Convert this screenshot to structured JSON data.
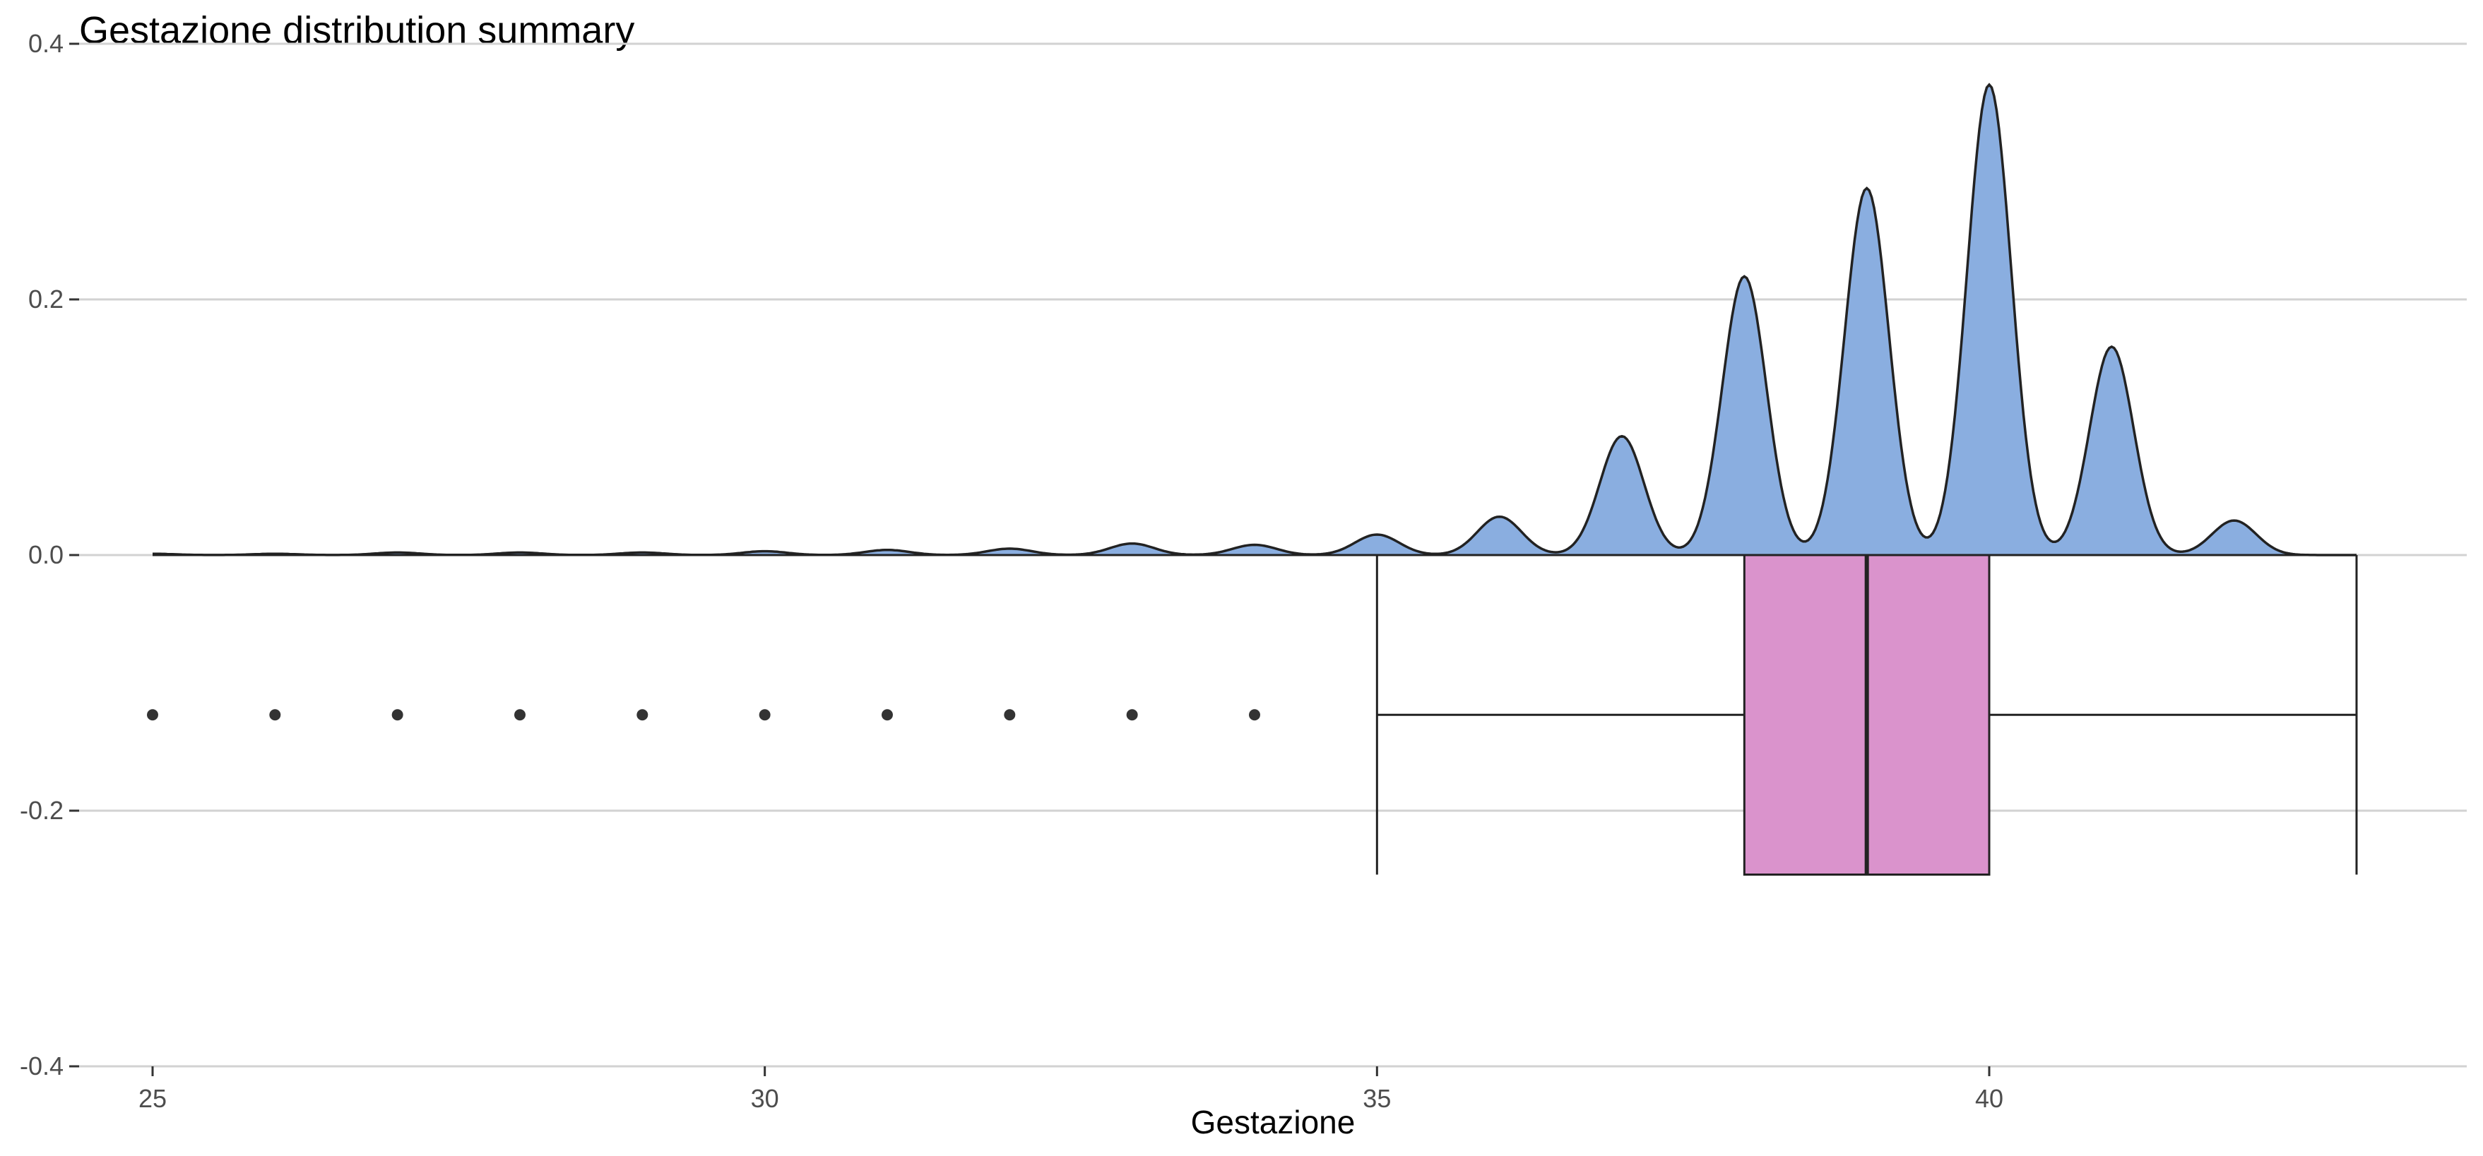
{
  "chart_data": {
    "type": "density-boxplot",
    "title": "Gestazione distribution summary",
    "xlabel": "Gestazione",
    "ylabel": "",
    "xlim": [
      24.4,
      43.9
    ],
    "ylim": [
      -0.4,
      0.4
    ],
    "x_ticks": [
      25,
      30,
      35,
      40
    ],
    "y_ticks": [
      -0.4,
      -0.2,
      0.0,
      0.2,
      0.4
    ],
    "y_tick_labels": [
      "-0.4",
      "-0.2",
      "0.0",
      "0.2",
      "0.4"
    ],
    "grid": "horizontal-major",
    "density": {
      "fill": "#8aaee0",
      "stroke": "#222222",
      "peaks": [
        {
          "x": 25,
          "y": 0.001,
          "w": 0.18
        },
        {
          "x": 26,
          "y": 0.001,
          "w": 0.18
        },
        {
          "x": 27,
          "y": 0.002,
          "w": 0.18
        },
        {
          "x": 28,
          "y": 0.002,
          "w": 0.18
        },
        {
          "x": 29,
          "y": 0.002,
          "w": 0.18
        },
        {
          "x": 30,
          "y": 0.003,
          "w": 0.18
        },
        {
          "x": 31,
          "y": 0.004,
          "w": 0.18
        },
        {
          "x": 32,
          "y": 0.005,
          "w": 0.18
        },
        {
          "x": 33,
          "y": 0.009,
          "w": 0.18
        },
        {
          "x": 34,
          "y": 0.008,
          "w": 0.18
        },
        {
          "x": 35,
          "y": 0.016,
          "w": 0.18
        },
        {
          "x": 36,
          "y": 0.03,
          "w": 0.18
        },
        {
          "x": 37,
          "y": 0.093,
          "w": 0.18
        },
        {
          "x": 38,
          "y": 0.218,
          "w": 0.18
        },
        {
          "x": 39,
          "y": 0.287,
          "w": 0.18
        },
        {
          "x": 40,
          "y": 0.368,
          "w": 0.18
        },
        {
          "x": 41,
          "y": 0.163,
          "w": 0.18
        },
        {
          "x": 42,
          "y": 0.027,
          "w": 0.18
        }
      ],
      "x_range": [
        25,
        43
      ]
    },
    "boxplot": {
      "y_center": -0.125,
      "y_bottom": -0.25,
      "y_top": 0.0,
      "whisker_low": 35,
      "q1": 38,
      "median": 39,
      "q3": 40,
      "whisker_high": 43,
      "outliers": [
        25,
        26,
        27,
        28,
        29,
        30,
        31,
        32,
        33,
        34
      ],
      "fill": "#da93cc",
      "stroke": "#222222"
    }
  }
}
